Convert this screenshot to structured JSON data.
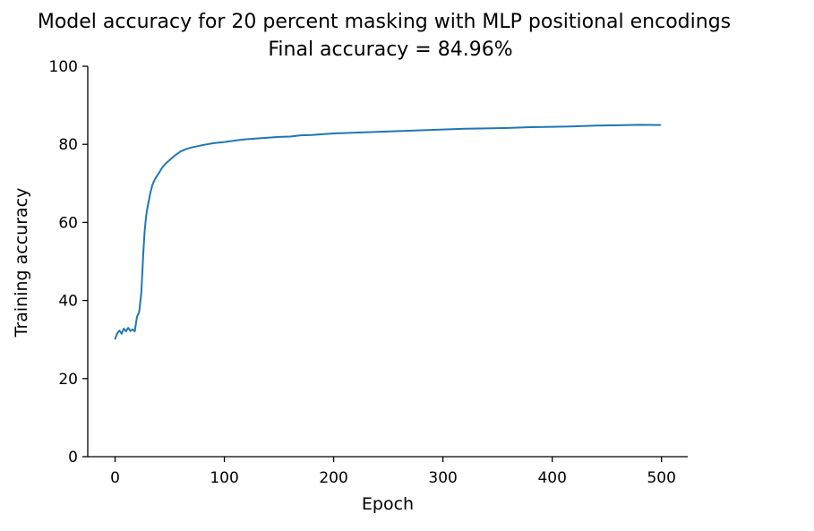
{
  "chart_data": {
    "type": "line",
    "title": "Model accuracy for 20 percent masking with MLP positional encodings",
    "subtitle": "Final accuracy = 84.96%",
    "xlabel": "Epoch",
    "ylabel": "Training accuracy",
    "xlim": [
      -25,
      524
    ],
    "ylim": [
      0,
      100
    ],
    "xticks": [
      0,
      100,
      200,
      300,
      400,
      500
    ],
    "yticks": [
      0,
      20,
      40,
      60,
      80,
      100
    ],
    "xtick_labels": [
      "0",
      "100",
      "200",
      "300",
      "400",
      "500"
    ],
    "ytick_labels": [
      "0",
      "20",
      "40",
      "60",
      "80",
      "100"
    ],
    "grid": false,
    "color": "#1f77b4",
    "series": [
      {
        "x": [
          0,
          2,
          4,
          6,
          8,
          10,
          12,
          14,
          16,
          18,
          20,
          22,
          24,
          25,
          26,
          27,
          28,
          29,
          30,
          32,
          34,
          36,
          38,
          40,
          43,
          46,
          50,
          55,
          60,
          65,
          70,
          80,
          90,
          100,
          110,
          120,
          130,
          140,
          150,
          160,
          170,
          180,
          190,
          200,
          220,
          240,
          260,
          280,
          300,
          320,
          340,
          360,
          380,
          400,
          420,
          440,
          460,
          480,
          499
        ],
        "y": [
          30.2,
          31.6,
          32.3,
          31.5,
          32.8,
          32.1,
          33.0,
          32.2,
          32.6,
          32.1,
          35.8,
          37.0,
          42.0,
          47.5,
          53.0,
          57.5,
          60.5,
          62.8,
          64.3,
          67.2,
          69.5,
          70.8,
          71.8,
          72.6,
          74.0,
          75.0,
          76.0,
          77.2,
          78.2,
          78.8,
          79.2,
          79.8,
          80.3,
          80.6,
          81.0,
          81.3,
          81.5,
          81.7,
          81.9,
          82.0,
          82.3,
          82.4,
          82.6,
          82.8,
          83.0,
          83.2,
          83.4,
          83.6,
          83.8,
          84.0,
          84.1,
          84.2,
          84.4,
          84.5,
          84.6,
          84.8,
          84.9,
          85.0,
          84.96
        ]
      }
    ]
  }
}
